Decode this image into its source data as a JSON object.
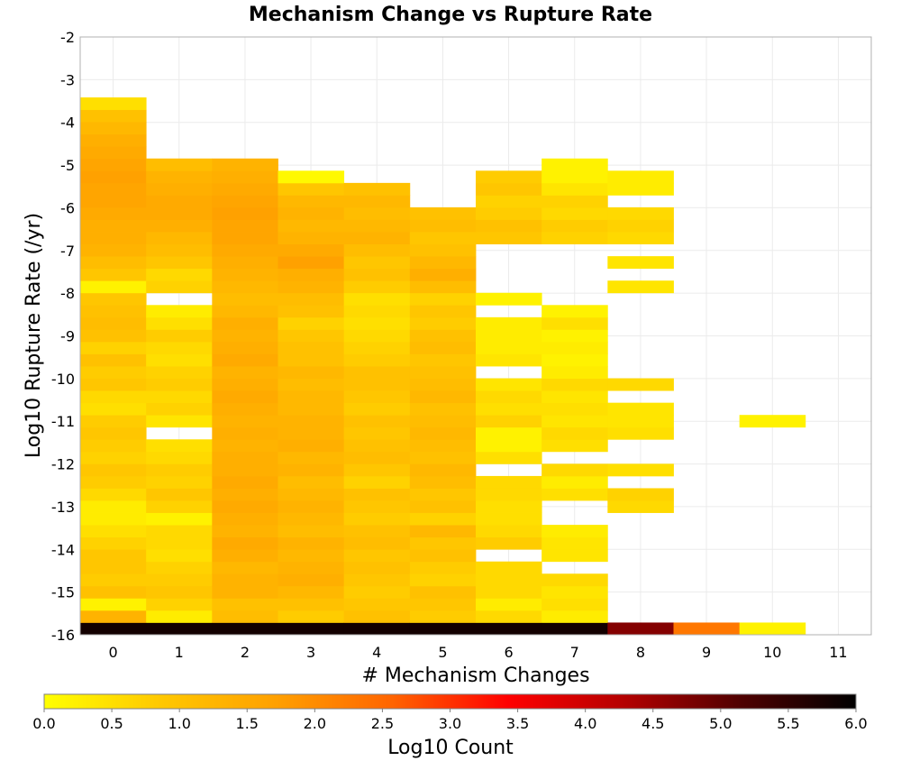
{
  "chart_data": {
    "type": "heatmap",
    "title": "Mechanism Change vs Rupture Rate",
    "xlabel": "# Mechanism Changes",
    "ylabel": "Log10 Rupture Rate (/yr)",
    "xlim": [
      -0.5,
      11.5
    ],
    "ylim": [
      -16,
      -2
    ],
    "x_ticks": [
      "0",
      "1",
      "2",
      "3",
      "4",
      "5",
      "6",
      "7",
      "8",
      "9",
      "10",
      "11"
    ],
    "y_ticks": [
      "-2",
      "-3",
      "-4",
      "-5",
      "-6",
      "-7",
      "-8",
      "-9",
      "-10",
      "-11",
      "-12",
      "-13",
      "-14",
      "-15",
      "-16"
    ],
    "y_bin_size": 0.286,
    "grid": true,
    "colorbar": {
      "label": "Log10 Count",
      "min": 0.0,
      "max": 6.0,
      "ticks": [
        "0.0",
        "0.5",
        "1.0",
        "1.5",
        "2.0",
        "2.5",
        "3.0",
        "3.5",
        "4.0",
        "4.5",
        "5.0",
        "5.5",
        "6.0"
      ],
      "colors": [
        "#ffff00",
        "#ffc800",
        "#ffa000",
        "#ff6400",
        "#ff0000",
        "#b40000",
        "#500000",
        "#000000"
      ]
    },
    "columns": [
      {
        "x": 0,
        "y_start": -16.0,
        "values": [
          5.8,
          1.3,
          0.2,
          1.0,
          0.8,
          0.9,
          0.9,
          0.7,
          0.5,
          0.3,
          0.3,
          0.6,
          0.8,
          0.9,
          0.7,
          0.8,
          0.9,
          0.8,
          0.5,
          0.6,
          0.9,
          0.8,
          1.0,
          0.7,
          1.0,
          1.1,
          1.0,
          0.9,
          0.2,
          0.9,
          1.1,
          1.3,
          1.4,
          1.4,
          1.5,
          1.6,
          1.6,
          1.7,
          1.6,
          1.5,
          1.4,
          1.2,
          1.0,
          0.5
        ]
      },
      {
        "x": 1,
        "y_start": -16.0,
        "values": [
          5.8,
          0.3,
          0.7,
          0.9,
          0.8,
          0.7,
          0.5,
          0.6,
          0.6,
          0.2,
          0.7,
          0.9,
          0.7,
          0.8,
          0.6,
          0.5,
          null,
          0.4,
          0.7,
          0.6,
          0.8,
          0.7,
          0.5,
          0.6,
          0.8,
          0.5,
          0.3,
          null,
          0.7,
          0.6,
          0.9,
          1.1,
          1.2,
          1.4,
          1.5,
          1.5,
          1.4,
          1.3,
          1.1
        ]
      },
      {
        "x": 2,
        "y_start": -16.0,
        "values": [
          5.8,
          1.1,
          1.0,
          1.3,
          1.3,
          1.2,
          1.4,
          1.5,
          1.3,
          1.4,
          1.5,
          1.4,
          1.5,
          1.4,
          1.4,
          1.3,
          1.4,
          1.3,
          1.4,
          1.5,
          1.4,
          1.3,
          1.5,
          1.4,
          1.3,
          1.4,
          1.2,
          1.1,
          1.2,
          1.3,
          1.4,
          1.5,
          1.6,
          1.6,
          1.7,
          1.6,
          1.5,
          1.4,
          1.3
        ]
      },
      {
        "x": 3,
        "y_start": -16.0,
        "values": [
          5.8,
          0.8,
          1.0,
          1.2,
          1.4,
          1.3,
          1.2,
          1.3,
          1.1,
          1.2,
          1.3,
          1.2,
          1.1,
          1.3,
          1.2,
          1.4,
          1.3,
          1.3,
          1.2,
          1.2,
          1.1,
          1.2,
          1.0,
          1.0,
          0.9,
          0.7,
          1.0,
          1.1,
          1.3,
          1.4,
          1.7,
          1.5,
          1.3,
          1.2,
          1.3,
          1.2,
          0.9,
          0.1
        ]
      },
      {
        "x": 4,
        "y_start": -16.0,
        "values": [
          5.8,
          1.0,
          0.9,
          0.8,
          0.9,
          1.0,
          0.9,
          1.1,
          1.0,
          0.8,
          0.9,
          1.0,
          0.7,
          0.9,
          1.1,
          1.0,
          0.9,
          1.0,
          0.8,
          0.9,
          1.0,
          1.0,
          0.8,
          0.7,
          0.6,
          0.5,
          0.6,
          0.5,
          0.8,
          1.0,
          0.9,
          1.1,
          1.3,
          1.2,
          1.1,
          1.2,
          1.0
        ]
      },
      {
        "x": 5,
        "y_start": -16.0,
        "values": [
          5.8,
          0.8,
          0.9,
          1.0,
          0.7,
          0.8,
          1.0,
          0.9,
          1.2,
          0.7,
          1.0,
          0.9,
          1.1,
          1.2,
          1.0,
          1.1,
          1.2,
          1.1,
          1.0,
          1.2,
          1.1,
          1.0,
          0.9,
          1.1,
          1.0,
          0.8,
          0.9,
          0.7,
          1.1,
          1.4,
          1.2,
          1.0,
          0.9,
          1.1,
          1.0
        ]
      },
      {
        "x": 6,
        "y_start": -16.0,
        "values": [
          5.8,
          0.6,
          0.3,
          0.6,
          0.6,
          0.6,
          null,
          0.8,
          0.6,
          0.5,
          0.5,
          0.6,
          0.6,
          null,
          0.5,
          0.2,
          0.2,
          0.7,
          0.5,
          0.6,
          0.4,
          null,
          0.4,
          0.3,
          0.3,
          0.3,
          null,
          0.2,
          null,
          null,
          null,
          null,
          0.9,
          1.0,
          0.8,
          0.7,
          0.9,
          0.8
        ]
      },
      {
        "x": 7,
        "y_start": -16.0,
        "values": [
          5.8,
          0.3,
          0.5,
          0.4,
          0.6,
          null,
          0.4,
          0.4,
          0.3,
          null,
          null,
          0.5,
          0.3,
          0.6,
          null,
          0.5,
          0.6,
          0.4,
          0.5,
          0.4,
          0.6,
          0.3,
          0.2,
          0.3,
          0.2,
          0.5,
          0.2,
          null,
          null,
          null,
          null,
          null,
          0.7,
          0.8,
          0.6,
          0.7,
          0.4,
          0.2,
          0.2
        ]
      },
      {
        "x": 8,
        "y_start": -16.0,
        "values": [
          4.7,
          null,
          null,
          null,
          null,
          null,
          null,
          null,
          null,
          null,
          0.6,
          0.7,
          null,
          0.5,
          null,
          null,
          0.5,
          0.4,
          0.4,
          null,
          0.6,
          null,
          null,
          null,
          null,
          null,
          null,
          null,
          0.4,
          null,
          0.4,
          null,
          0.6,
          0.7,
          0.6,
          null,
          0.3,
          0.3
        ]
      },
      {
        "x": 9,
        "y_start": -16.0,
        "values": [
          2.3
        ]
      },
      {
        "x": 10,
        "y_start": -16.0,
        "values": [
          0.2,
          null,
          null,
          null,
          null,
          null,
          null,
          null,
          null,
          null,
          null,
          null,
          null,
          null,
          null,
          null,
          null,
          0.2
        ]
      }
    ]
  }
}
